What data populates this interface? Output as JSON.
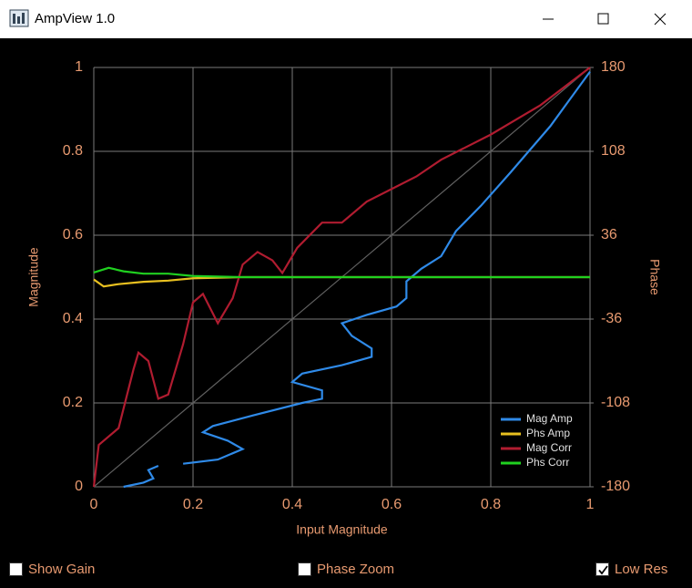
{
  "window": {
    "title": "AmpView 1.0"
  },
  "chart_data": {
    "type": "line",
    "xlabel": "Input Magnitude",
    "ylabel": "Magnitude",
    "y2label": "Phase",
    "xlim": [
      0,
      1
    ],
    "xticks": [
      0,
      0.2,
      0.4,
      0.6,
      0.8,
      1
    ],
    "ylim": [
      0,
      1
    ],
    "yticks": [
      0,
      0.2,
      0.4,
      0.6,
      0.8,
      1
    ],
    "y2lim": [
      -180,
      180
    ],
    "y2ticks": [
      -180,
      -108,
      -36,
      36,
      108,
      180
    ],
    "grid": true,
    "legend": "lower right",
    "series": [
      {
        "name": "Mag Amp",
        "color": "#2f8ae8",
        "x": [
          0.06,
          0.1,
          0.12,
          0.11,
          0.13,
          null,
          0.18,
          0.25,
          0.3,
          0.27,
          0.22,
          0.24,
          0.32,
          0.42,
          0.46,
          0.46,
          0.4,
          0.42,
          0.5,
          0.56,
          0.56,
          0.52,
          0.5,
          0.55,
          0.61,
          0.63,
          0.63,
          0.66,
          0.7,
          0.71,
          0.73,
          0.78,
          0.84,
          0.92,
          1.0
        ],
        "values": [
          0.0,
          0.01,
          0.02,
          0.04,
          0.05,
          null,
          0.055,
          0.065,
          0.09,
          0.11,
          0.13,
          0.145,
          0.17,
          0.2,
          0.21,
          0.23,
          0.25,
          0.27,
          0.29,
          0.31,
          0.33,
          0.36,
          0.39,
          0.41,
          0.43,
          0.45,
          0.49,
          0.52,
          0.55,
          0.57,
          0.61,
          0.67,
          0.75,
          0.86,
          0.99
        ]
      },
      {
        "name": "Phs Amp",
        "color": "#e8c020",
        "axis": "y2",
        "x": [
          0,
          0.02,
          0.05,
          0.1,
          0.15,
          0.2,
          0.3,
          1.0
        ],
        "values": [
          -2,
          -8,
          -6,
          -4,
          -3,
          -1,
          0,
          0
        ]
      },
      {
        "name": "Mag Corr",
        "color": "#b01c30",
        "x": [
          0.0,
          0.01,
          0.03,
          0.05,
          0.08,
          0.09,
          0.11,
          0.13,
          0.15,
          0.18,
          0.2,
          0.22,
          0.25,
          0.28,
          0.3,
          0.33,
          0.36,
          0.38,
          0.41,
          0.46,
          0.5,
          0.55,
          0.6,
          0.65,
          0.7,
          0.8,
          0.9,
          1.0
        ],
        "values": [
          0.0,
          0.1,
          0.12,
          0.14,
          0.28,
          0.32,
          0.3,
          0.21,
          0.22,
          0.34,
          0.44,
          0.46,
          0.39,
          0.45,
          0.53,
          0.56,
          0.54,
          0.51,
          0.57,
          0.63,
          0.63,
          0.68,
          0.71,
          0.74,
          0.78,
          0.84,
          0.91,
          1.0
        ]
      },
      {
        "name": "Phs Corr",
        "color": "#20d020",
        "axis": "y2",
        "x": [
          0,
          0.03,
          0.06,
          0.1,
          0.15,
          0.2,
          0.3,
          1.0
        ],
        "values": [
          4,
          8,
          5,
          3,
          3,
          1,
          0,
          0
        ]
      }
    ]
  },
  "controls": [
    {
      "label": "Show Gain",
      "checked": false
    },
    {
      "label": "Phase Zoom",
      "checked": false
    },
    {
      "label": "Low Res",
      "checked": true
    }
  ]
}
